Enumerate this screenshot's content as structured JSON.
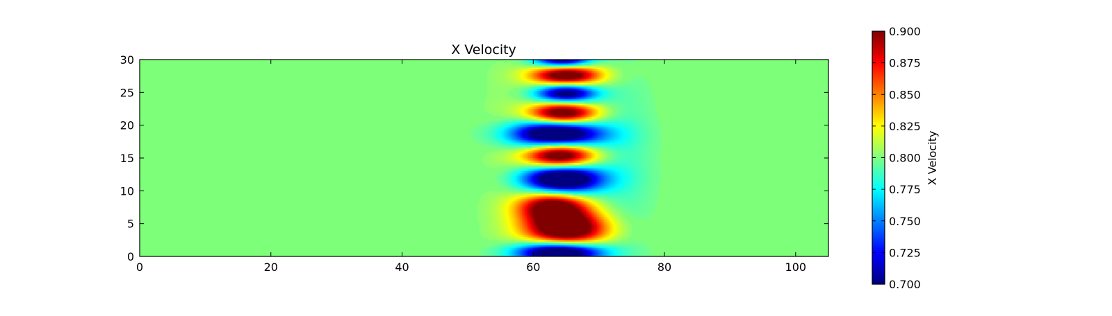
{
  "chart_data": {
    "type": "heatmap",
    "title": "X Velocity",
    "xlabel": "",
    "ylabel": "",
    "xlim": [
      0,
      105
    ],
    "ylim": [
      0,
      30
    ],
    "x_ticks": [
      "0",
      "20",
      "40",
      "60",
      "80",
      "100"
    ],
    "y_ticks": [
      "0",
      "5",
      "10",
      "15",
      "20",
      "25",
      "30"
    ],
    "grid": false,
    "colormap": "jet",
    "background_value": 0.8,
    "colorbar": {
      "label": "X Velocity",
      "range": [
        0.7,
        0.9
      ],
      "ticks": [
        "0.700",
        "0.725",
        "0.750",
        "0.775",
        "0.800",
        "0.825",
        "0.850",
        "0.875",
        "0.900"
      ]
    },
    "features": [
      {
        "x": 64.5,
        "y": 29.9,
        "sx": 3.0,
        "sy": 0.9,
        "amplitude": -0.12
      },
      {
        "x": 65.0,
        "y": 27.6,
        "sx": 3.6,
        "sy": 1.2,
        "amplitude": 0.13
      },
      {
        "x": 65.0,
        "y": 24.9,
        "sx": 3.2,
        "sy": 1.1,
        "amplitude": -0.12
      },
      {
        "x": 64.5,
        "y": 21.8,
        "sx": 3.5,
        "sy": 1.2,
        "amplitude": 0.13
      },
      {
        "x": 63.5,
        "y": 18.6,
        "sx": 4.8,
        "sy": 1.5,
        "amplitude": -0.15
      },
      {
        "x": 64.0,
        "y": 15.4,
        "sx": 3.6,
        "sy": 1.4,
        "amplitude": 0.14
      },
      {
        "x": 64.5,
        "y": 11.8,
        "sx": 4.2,
        "sy": 1.6,
        "amplitude": -0.15
      },
      {
        "x": 63.0,
        "y": 7.6,
        "sx": 3.6,
        "sy": 1.6,
        "amplitude": 0.12
      },
      {
        "x": 65.0,
        "y": 4.2,
        "sx": 4.2,
        "sy": 1.8,
        "amplitude": 0.14
      },
      {
        "x": 64.0,
        "y": 0.6,
        "sx": 4.5,
        "sy": 1.1,
        "amplitude": -0.15
      },
      {
        "x": 74.0,
        "y": 15.0,
        "sx": 3.0,
        "sy": 9.0,
        "amplitude": -0.012
      },
      {
        "x": 56.0,
        "y": 15.0,
        "sx": 3.0,
        "sy": 12.0,
        "amplitude": 0.006
      }
    ]
  }
}
